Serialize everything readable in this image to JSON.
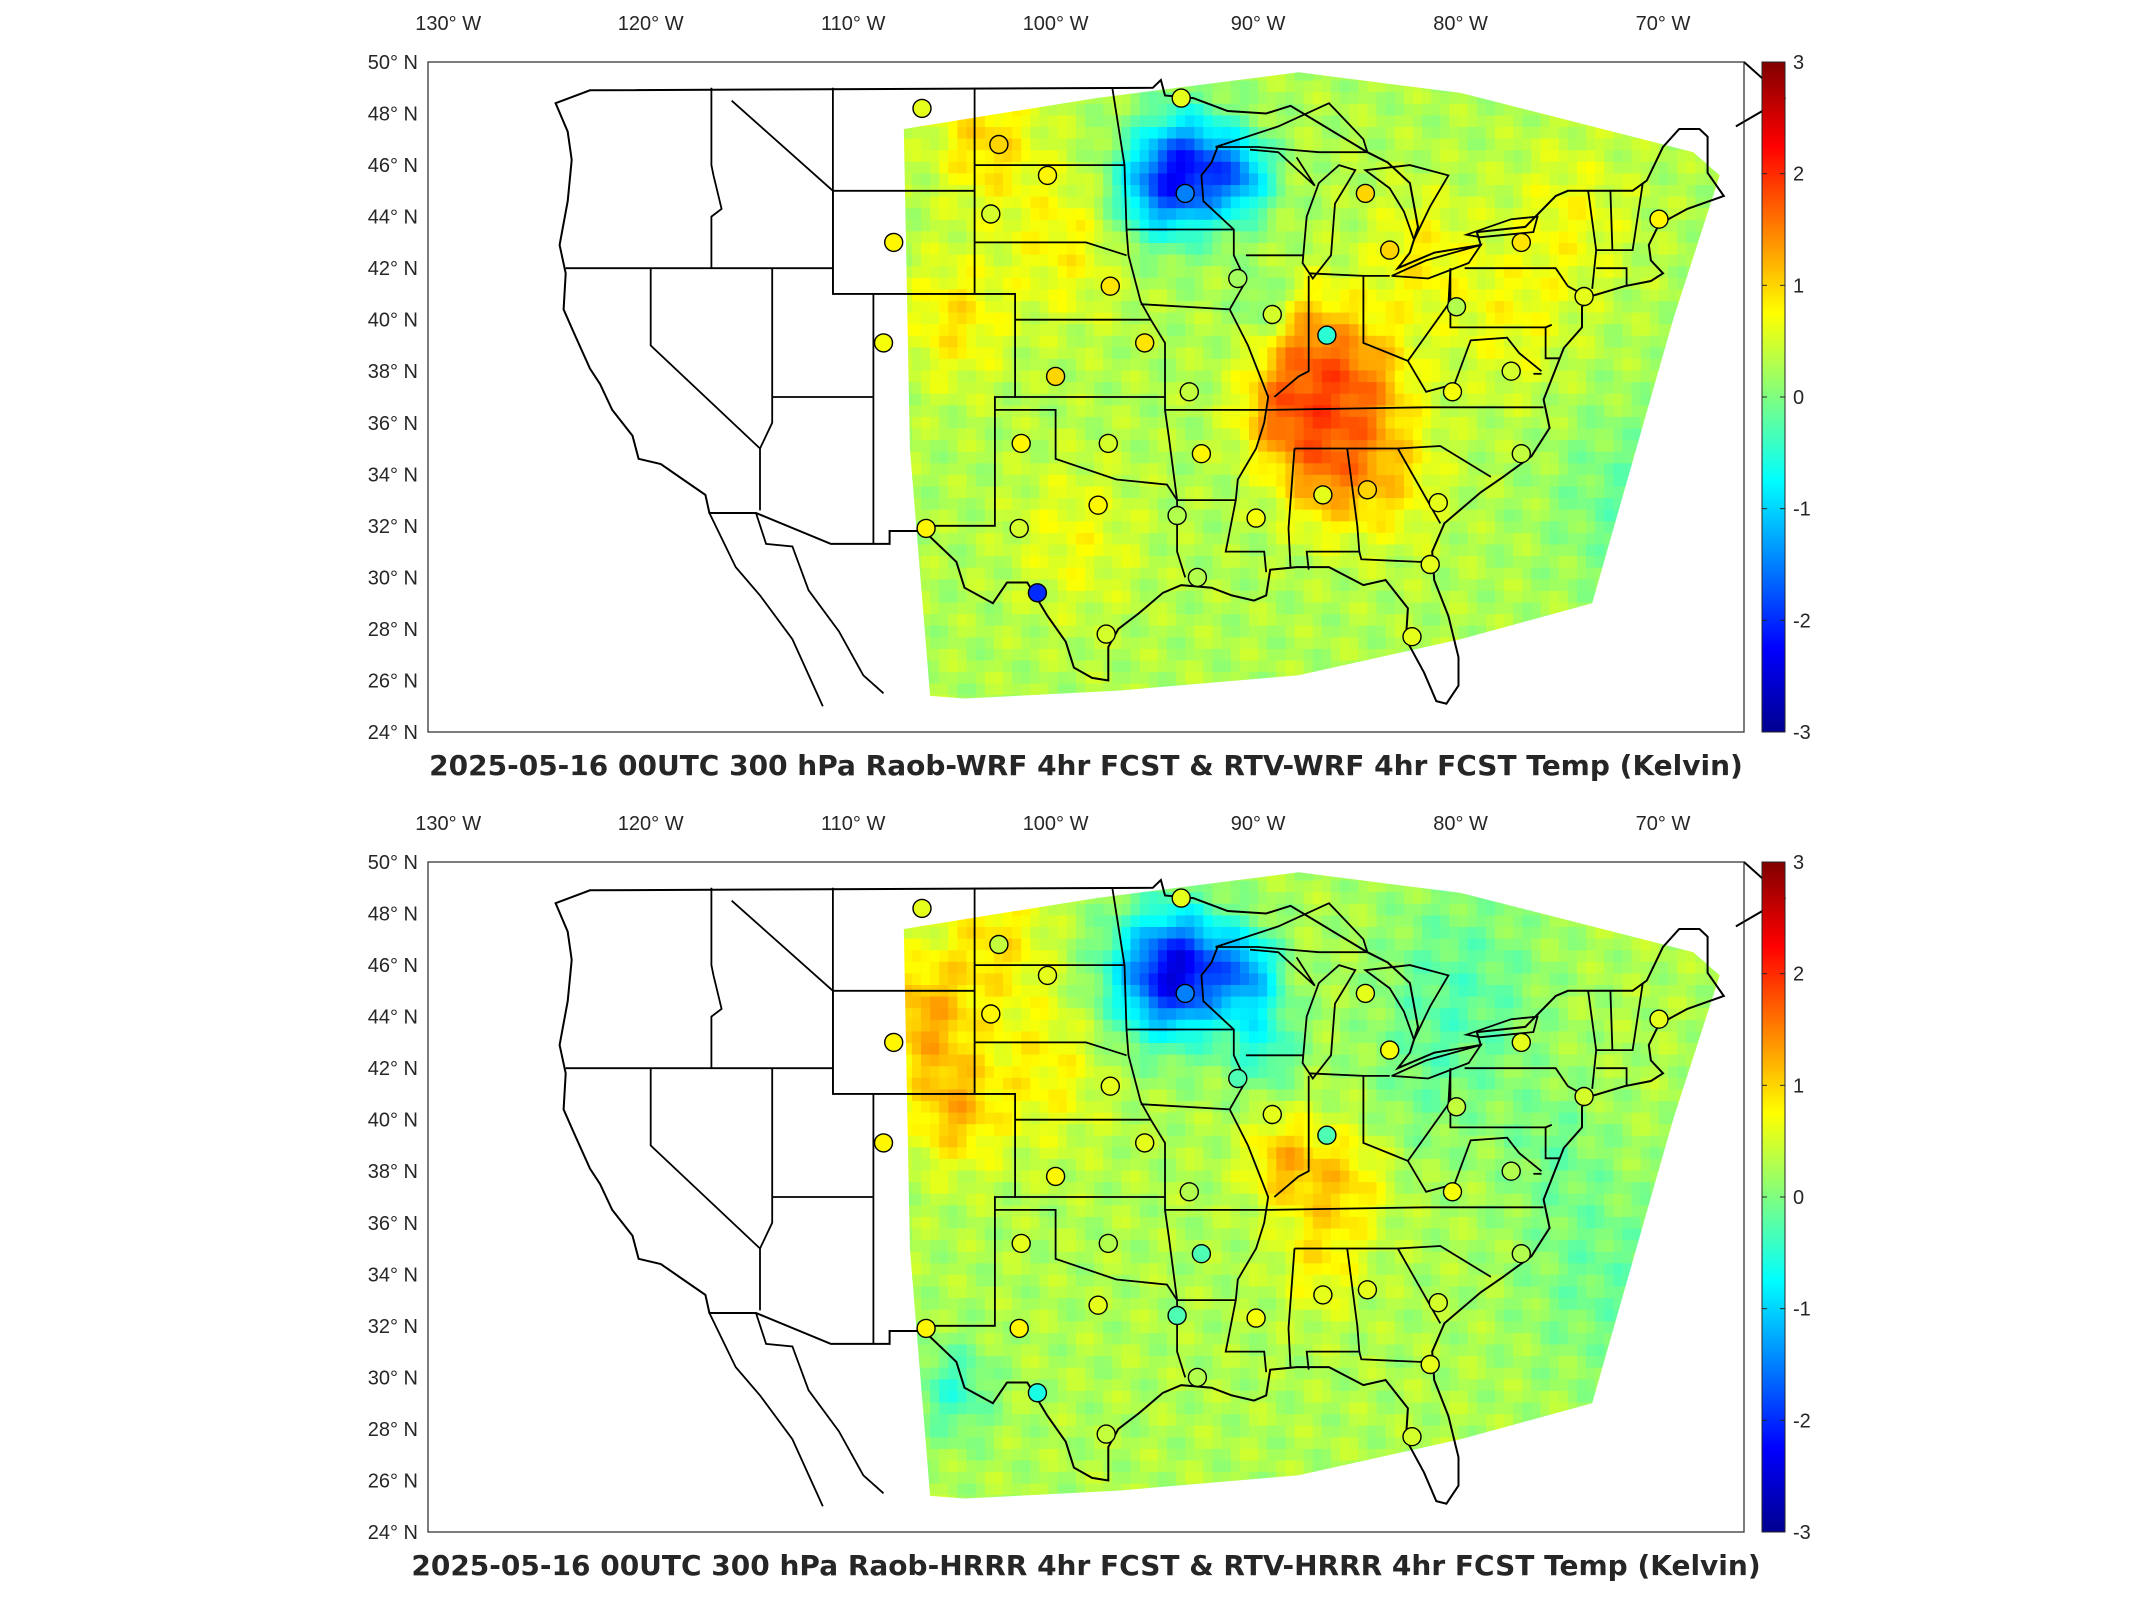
{
  "colorbar": {
    "ticks": [
      "3",
      "2",
      "1",
      "0",
      "-1",
      "-2",
      "-3"
    ],
    "range": [
      -3,
      3
    ],
    "colormap": "jet",
    "colors": [
      "#00008f",
      "#0000ff",
      "#0080ff",
      "#00ffff",
      "#80ff80",
      "#ffff00",
      "#ff8000",
      "#ff0000",
      "#800000"
    ]
  },
  "map": {
    "lon_labels": [
      "130° W",
      "120° W",
      "110° W",
      "100° W",
      "90° W",
      "80° W",
      "70° W"
    ],
    "lat_labels": [
      "50° N",
      "48° N",
      "46° N",
      "44° N",
      "42° N",
      "40° N",
      "38° N",
      "36° N",
      "34° N",
      "32° N",
      "30° N",
      "28° N",
      "26° N",
      "24° N"
    ],
    "lon_range": [
      -131,
      -66
    ],
    "lat_range": [
      24,
      50
    ]
  },
  "panels": [
    {
      "title": "2025-05-16 00UTC 300 hPa Raob-WRF 4hr FCST & RTV-WRF 4hr FCST Temp (Kelvin)",
      "model": "WRF"
    },
    {
      "title": "2025-05-16 00UTC 300 hPa Raob-HRRR 4hr FCST & RTV-HRRR 4hr FCST Temp (Kelvin)",
      "model": "HRRR"
    }
  ],
  "raob_stations": [
    {
      "lon": -106.6,
      "lat": 48.2,
      "wrf": 0.6,
      "hrrr": 0.6
    },
    {
      "lon": -102.8,
      "lat": 46.8,
      "wrf": 1.0,
      "hrrr": 0.4
    },
    {
      "lon": -100.4,
      "lat": 45.6,
      "wrf": 0.8,
      "hrrr": 0.6
    },
    {
      "lon": -103.2,
      "lat": 44.1,
      "wrf": 0.5,
      "hrrr": 0.8
    },
    {
      "lon": -108.0,
      "lat": 43.0,
      "wrf": 0.8,
      "hrrr": 0.8
    },
    {
      "lon": -97.3,
      "lat": 41.3,
      "wrf": 0.9,
      "hrrr": 0.6
    },
    {
      "lon": -93.6,
      "lat": 44.9,
      "wrf": -1.5,
      "hrrr": -1.5
    },
    {
      "lon": -93.8,
      "lat": 48.6,
      "wrf": 0.6,
      "hrrr": 0.6
    },
    {
      "lon": -91.0,
      "lat": 41.6,
      "wrf": 0.2,
      "hrrr": -0.3
    },
    {
      "lon": -89.3,
      "lat": 40.2,
      "wrf": 0.5,
      "hrrr": 0.6
    },
    {
      "lon": -84.7,
      "lat": 44.9,
      "wrf": 1.0,
      "hrrr": 0.6
    },
    {
      "lon": -83.5,
      "lat": 42.7,
      "wrf": 1.0,
      "hrrr": 0.7
    },
    {
      "lon": -86.6,
      "lat": 39.4,
      "wrf": -0.5,
      "hrrr": -0.3
    },
    {
      "lon": -80.2,
      "lat": 40.5,
      "wrf": 0.3,
      "hrrr": 0.4
    },
    {
      "lon": -77.0,
      "lat": 43.0,
      "wrf": 0.9,
      "hrrr": 0.6
    },
    {
      "lon": -70.2,
      "lat": 43.9,
      "wrf": 0.8,
      "hrrr": 0.6
    },
    {
      "lon": -73.9,
      "lat": 40.9,
      "wrf": 0.6,
      "hrrr": 0.5
    },
    {
      "lon": -77.5,
      "lat": 38.0,
      "wrf": 0.5,
      "hrrr": 0.3
    },
    {
      "lon": -80.4,
      "lat": 37.2,
      "wrf": 0.7,
      "hrrr": 0.7
    },
    {
      "lon": -77.0,
      "lat": 34.8,
      "wrf": 0.4,
      "hrrr": 0.3
    },
    {
      "lon": -81.1,
      "lat": 32.9,
      "wrf": 0.6,
      "hrrr": 0.5
    },
    {
      "lon": -84.6,
      "lat": 33.4,
      "wrf": 1.0,
      "hrrr": 0.6
    },
    {
      "lon": -86.8,
      "lat": 33.2,
      "wrf": 0.6,
      "hrrr": 0.6
    },
    {
      "lon": -90.1,
      "lat": 32.3,
      "wrf": 0.7,
      "hrrr": 0.7
    },
    {
      "lon": -92.8,
      "lat": 34.8,
      "wrf": 0.8,
      "hrrr": -0.3
    },
    {
      "lon": -94.0,
      "lat": 32.4,
      "wrf": 0.3,
      "hrrr": -0.3
    },
    {
      "lon": -93.0,
      "lat": 30.0,
      "wrf": 0.3,
      "hrrr": 0.3
    },
    {
      "lon": -97.5,
      "lat": 27.8,
      "wrf": 0.5,
      "hrrr": 0.4
    },
    {
      "lon": -100.9,
      "lat": 29.4,
      "wrf": -2.0,
      "hrrr": -0.6
    },
    {
      "lon": -106.4,
      "lat": 31.9,
      "wrf": 0.8,
      "hrrr": 0.8
    },
    {
      "lon": -101.8,
      "lat": 31.9,
      "wrf": 0.5,
      "hrrr": 0.8
    },
    {
      "lon": -97.9,
      "lat": 32.8,
      "wrf": 0.8,
      "hrrr": 0.6
    },
    {
      "lon": -97.4,
      "lat": 35.2,
      "wrf": 0.5,
      "hrrr": 0.3
    },
    {
      "lon": -101.7,
      "lat": 35.2,
      "wrf": 0.8,
      "hrrr": 0.6
    },
    {
      "lon": -100.0,
      "lat": 37.8,
      "wrf": 1.0,
      "hrrr": 0.8
    },
    {
      "lon": -95.6,
      "lat": 39.1,
      "wrf": 0.9,
      "hrrr": 0.6
    },
    {
      "lon": -93.4,
      "lat": 37.2,
      "wrf": 0.4,
      "hrrr": 0.3
    },
    {
      "lon": -108.5,
      "lat": 39.1,
      "wrf": 0.7,
      "hrrr": 0.8
    },
    {
      "lon": -81.5,
      "lat": 30.5,
      "wrf": 0.6,
      "hrrr": 0.6
    },
    {
      "lon": -82.4,
      "lat": 27.7,
      "wrf": 0.6,
      "hrrr": 0.5
    }
  ]
}
